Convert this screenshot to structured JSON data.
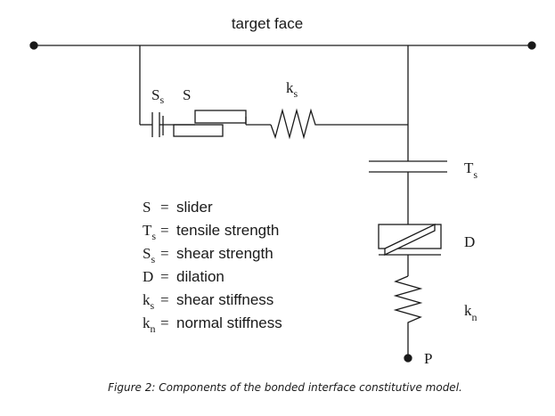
{
  "diagram": {
    "top_label": "target face",
    "labels": {
      "Ss": {
        "main": "S",
        "sub": "s"
      },
      "S": "S",
      "ks": {
        "main": "k",
        "sub": "s"
      },
      "Ts": {
        "main": "T",
        "sub": "s"
      },
      "D": "D",
      "kn": {
        "main": "k",
        "sub": "n"
      },
      "P": "P"
    },
    "legend": [
      {
        "symbol": "S",
        "sub": "",
        "equals": "=",
        "text": "slider"
      },
      {
        "symbol": "T",
        "sub": "s",
        "equals": "=",
        "text": "tensile strength"
      },
      {
        "symbol": "S",
        "sub": "s",
        "equals": "=",
        "text": "shear strength"
      },
      {
        "symbol": "D",
        "sub": "",
        "equals": "=",
        "text": "dilation"
      },
      {
        "symbol": "k",
        "sub": "s",
        "equals": "=",
        "text": "shear stiffness"
      },
      {
        "symbol": "k",
        "sub": "n",
        "equals": "=",
        "text": "normal stiffness"
      }
    ]
  },
  "caption": "Figure 2: Components of the bonded interface constitutive model."
}
